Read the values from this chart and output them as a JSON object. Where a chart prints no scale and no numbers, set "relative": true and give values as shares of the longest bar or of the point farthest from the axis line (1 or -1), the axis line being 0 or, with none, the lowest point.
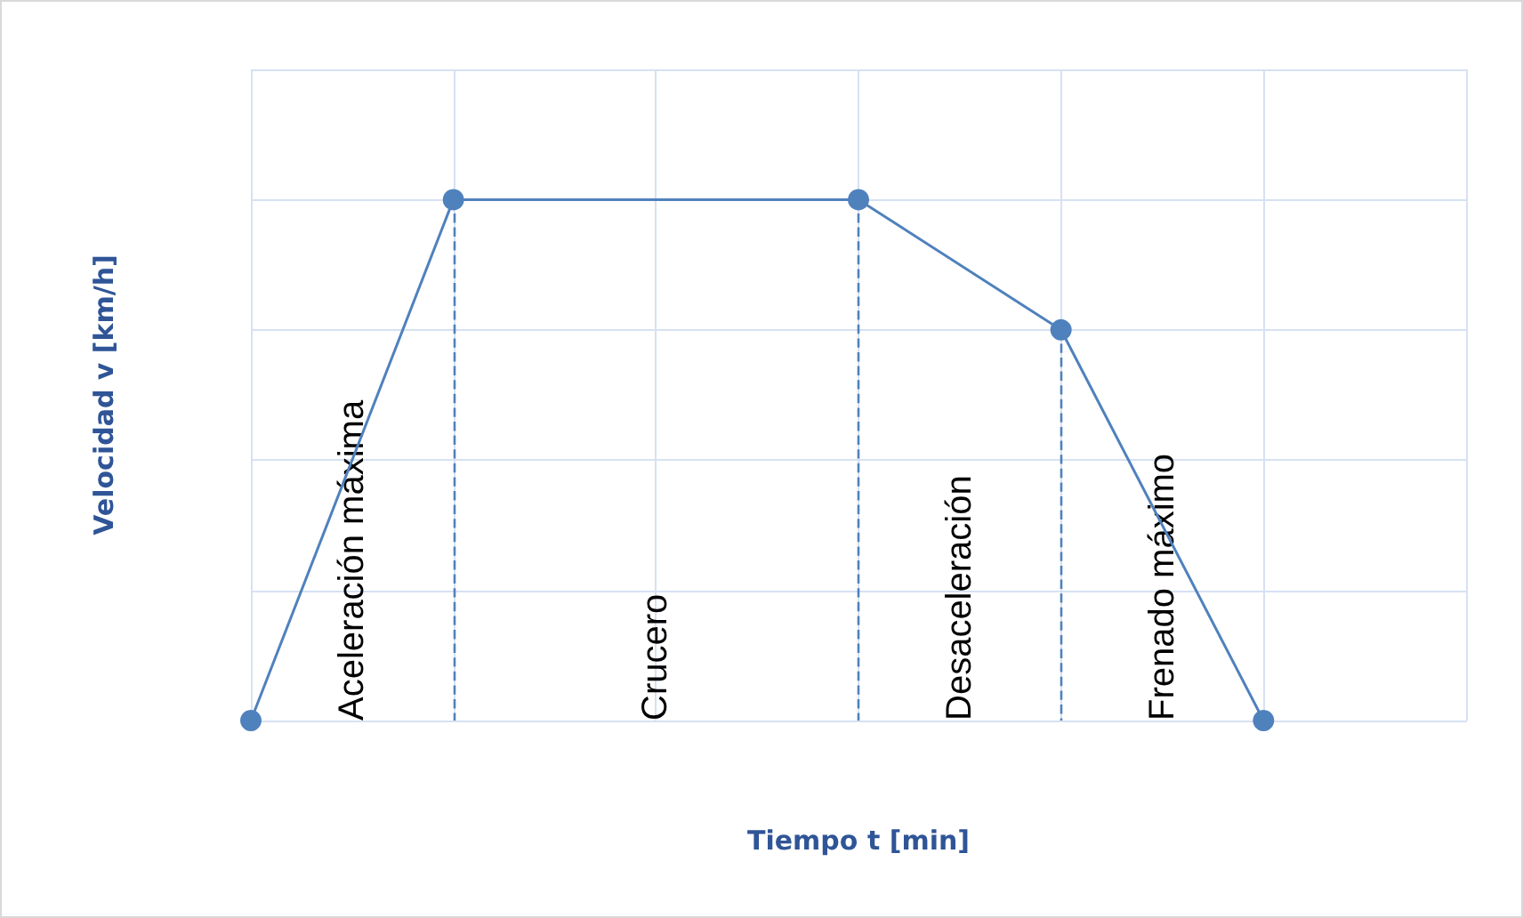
{
  "chart_data": {
    "type": "line",
    "relative": true,
    "xlabel": "Tiempo t [min]",
    "ylabel": "Velocidad v [km/h]",
    "categories": [
      null,
      null,
      null,
      null,
      null,
      null,
      null
    ],
    "series": [
      {
        "color": "#4f81bd",
        "values": [
          0,
          1,
          null,
          1,
          0.75,
          0,
          null
        ]
      }
    ],
    "marker": "circle",
    "grid": true,
    "annotations": [
      "Aceleración máxima",
      "Crucero",
      "Desaceleración",
      "Frenado máximo"
    ]
  }
}
